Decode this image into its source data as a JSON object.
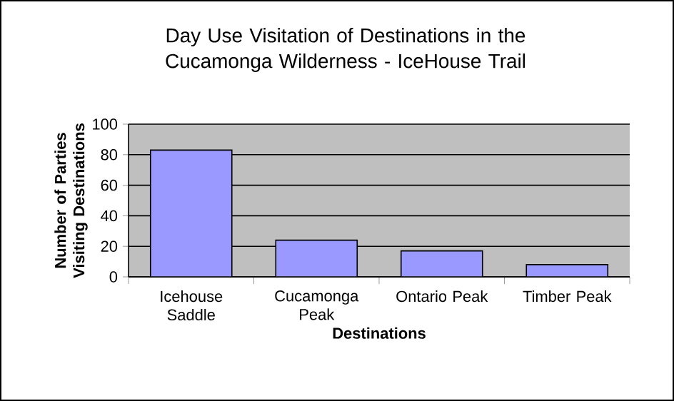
{
  "chart_data": {
    "type": "bar",
    "title": "Day Use Visitation of Destinations in the Cucamonga Wilderness - IceHouse Trail",
    "xlabel": "Destinations",
    "ylabel": "Number of Parties Visiting Destinations",
    "categories": [
      "Icehouse Saddle",
      "Cucamonga Peak",
      "Ontario Peak",
      "Timber Peak"
    ],
    "values": [
      83,
      24,
      17,
      8
    ],
    "color": "#9999ff",
    "ylim": [
      0,
      100
    ],
    "yticks": [
      0,
      20,
      40,
      60,
      80,
      100
    ],
    "grid": "y"
  }
}
